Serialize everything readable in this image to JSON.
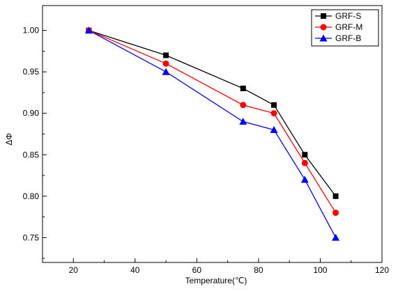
{
  "chart_data": {
    "type": "line",
    "title": "",
    "xlabel": "Temperature(℃)",
    "ylabel": "ΔΦ",
    "xlim": [
      10,
      120
    ],
    "ylim": [
      0.72,
      1.03
    ],
    "x_ticks": [
      20,
      40,
      60,
      80,
      100,
      120
    ],
    "y_ticks": [
      0.75,
      0.8,
      0.85,
      0.9,
      0.95,
      1.0
    ],
    "y_tick_labels": [
      "0.75",
      "0.80",
      "0.85",
      "0.90",
      "0.95",
      "1.00"
    ],
    "grid": false,
    "legend_position": "top-right",
    "series": [
      {
        "name": "GRF-S",
        "color": "#000000",
        "marker": "square",
        "x": [
          25,
          50,
          75,
          85,
          95,
          105
        ],
        "y": [
          1.0,
          0.97,
          0.93,
          0.91,
          0.85,
          0.8
        ]
      },
      {
        "name": "GRF-M",
        "color": "#ff0000",
        "marker": "circle",
        "x": [
          25,
          50,
          75,
          85,
          95,
          105
        ],
        "y": [
          1.0,
          0.96,
          0.91,
          0.9,
          0.84,
          0.78
        ]
      },
      {
        "name": "GRF-B",
        "color": "#0000ff",
        "marker": "triangle",
        "x": [
          25,
          50,
          75,
          85,
          95,
          105
        ],
        "y": [
          1.0,
          0.95,
          0.89,
          0.88,
          0.82,
          0.75
        ]
      }
    ]
  }
}
